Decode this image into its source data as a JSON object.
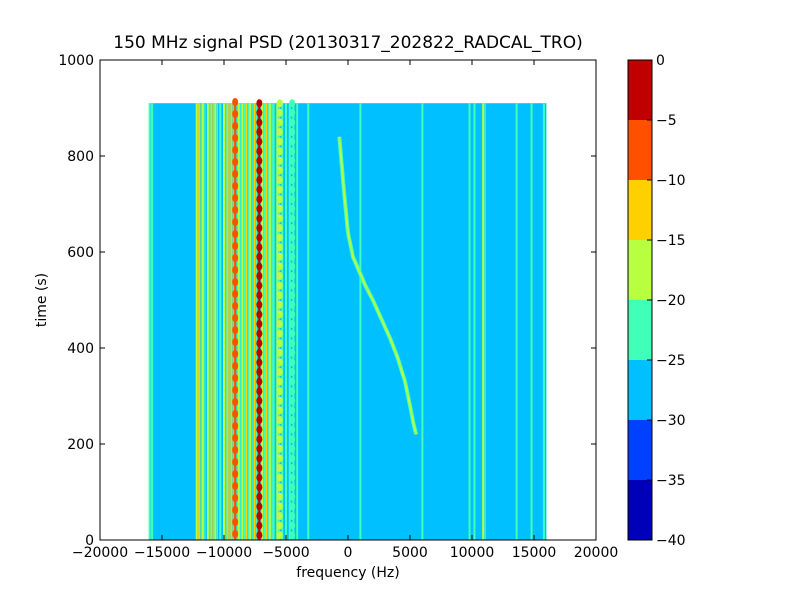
{
  "chart_data": {
    "type": "heatmap",
    "title": "150 MHz signal PSD (20130317_202822_RADCAL_TRO)",
    "xlabel": "frequency (Hz)",
    "ylabel": "time (s)",
    "xlim": [
      -20000,
      20000
    ],
    "ylim": [
      0,
      1000
    ],
    "x_ticks": [
      -20000,
      -15000,
      -10000,
      -5000,
      0,
      5000,
      10000,
      15000,
      20000
    ],
    "x_tick_labels": [
      "−20000",
      "−15000",
      "−10000",
      "−5000",
      "0",
      "5000",
      "10000",
      "15000",
      "20000"
    ],
    "y_ticks": [
      0,
      200,
      400,
      600,
      800,
      1000
    ],
    "y_tick_labels": [
      "0",
      "200",
      "400",
      "600",
      "800",
      "1000"
    ],
    "data_extent": {
      "x": [
        -16000,
        16000
      ],
      "y": [
        0,
        910
      ]
    },
    "background_level": -27.5,
    "colormap": "jet",
    "colorbar": {
      "levels": [
        -40,
        -35,
        -30,
        -25,
        -20,
        -15,
        -10,
        -5,
        0
      ],
      "tick_labels": [
        "−40",
        "−35",
        "−30",
        "−25",
        "−20",
        "−15",
        "−10",
        "−5",
        "0"
      ],
      "band_colors": [
        "#0000b8",
        "#0040ff",
        "#00c0ff",
        "#40ffb8",
        "#b8ff40",
        "#ffd000",
        "#ff5000",
        "#c00000"
      ]
    },
    "vertical_features": [
      {
        "x": -16000,
        "level": -22
      },
      {
        "x": -15800,
        "level": -22
      },
      {
        "x": -12200,
        "level": -18
      },
      {
        "x": -12000,
        "level": -12
      },
      {
        "x": -11700,
        "level": -18
      },
      {
        "x": -11300,
        "level": -18
      },
      {
        "x": -11000,
        "level": -12
      },
      {
        "x": -10700,
        "level": -18
      },
      {
        "x": -10300,
        "level": -22
      },
      {
        "x": -10000,
        "level": -18
      },
      {
        "x": -9700,
        "level": -12
      },
      {
        "x": -9400,
        "level": -12
      },
      {
        "x": -9100,
        "level": -8
      },
      {
        "x": -8800,
        "level": -18
      },
      {
        "x": -8500,
        "level": -18
      },
      {
        "x": -8200,
        "level": -12
      },
      {
        "x": -7900,
        "level": -18
      },
      {
        "x": -7550,
        "level": -12
      },
      {
        "x": -7150,
        "level": -3
      },
      {
        "x": -6900,
        "level": -18
      },
      {
        "x": -6600,
        "level": -12
      },
      {
        "x": -6300,
        "level": -18
      },
      {
        "x": -6000,
        "level": -22
      },
      {
        "x": -5700,
        "level": -18
      },
      {
        "x": -5300,
        "level": -22
      },
      {
        "x": -5000,
        "level": -22
      },
      {
        "x": -4700,
        "level": -22
      },
      {
        "x": -4400,
        "level": -22
      },
      {
        "x": -4100,
        "level": -22
      },
      {
        "x": -3200,
        "level": -22
      },
      {
        "x": 1000,
        "level": -22
      },
      {
        "x": 6000,
        "level": -22
      },
      {
        "x": 9800,
        "level": -22
      },
      {
        "x": 10200,
        "level": -22
      },
      {
        "x": 10900,
        "level": -18
      },
      {
        "x": 13600,
        "level": -22
      },
      {
        "x": 14800,
        "level": -22
      },
      {
        "x": 15800,
        "level": -22
      }
    ],
    "modulated_features": [
      {
        "x": -9100,
        "step": 25,
        "level": -8
      },
      {
        "x": -7150,
        "step": 20,
        "level": -3
      },
      {
        "x": -5500,
        "step": 20,
        "level": -18
      },
      {
        "x": -4500,
        "step": 20,
        "level": -22
      }
    ],
    "sweep_curve": {
      "level": -18,
      "points": [
        {
          "x": -700,
          "y": 840
        },
        {
          "x": -500,
          "y": 780
        },
        {
          "x": -300,
          "y": 720
        },
        {
          "x": 0,
          "y": 640
        },
        {
          "x": 400,
          "y": 590
        },
        {
          "x": 900,
          "y": 560
        },
        {
          "x": 1400,
          "y": 530
        },
        {
          "x": 2000,
          "y": 500
        },
        {
          "x": 2700,
          "y": 460
        },
        {
          "x": 3400,
          "y": 420
        },
        {
          "x": 4000,
          "y": 380
        },
        {
          "x": 4600,
          "y": 330
        },
        {
          "x": 5000,
          "y": 280
        },
        {
          "x": 5300,
          "y": 240
        },
        {
          "x": 5500,
          "y": 220
        }
      ]
    }
  }
}
